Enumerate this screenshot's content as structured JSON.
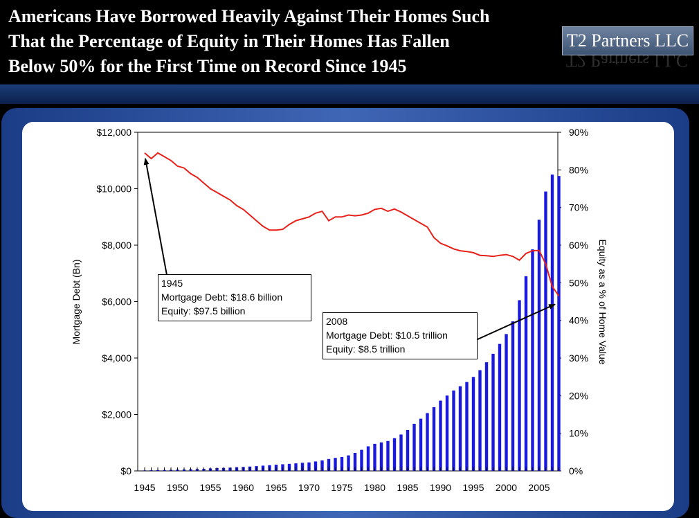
{
  "title": "Americans Have Borrowed Heavily Against Their Homes Such\nThat the Percentage of Equity in Their Homes Has Fallen\nBelow 50% for the First Time on Record Since 1945",
  "logo": "T2 Partners LLC",
  "colors": {
    "bars": "#1a1adc",
    "line": "#e8201a",
    "frame": "#2a4fa0"
  },
  "callouts": {
    "c1945": {
      "line1": "1945",
      "line2": "Mortgage Debt: $18.6 billion",
      "line3": "Equity: $97.5 billion"
    },
    "c2008": {
      "line1": "2008",
      "line2": "Mortgage Debt: $10.5 trillion",
      "line3": "Equity: $8.5 trillion"
    }
  },
  "chart_data": {
    "type": "bar+line",
    "xlabel": "",
    "ylabel_left": "Mortgage Debt (Bn)",
    "ylabel_right": "Equity as a % of Home Value",
    "ylim_left": [
      0,
      12000
    ],
    "ylim_right": [
      0,
      90
    ],
    "left_ticks": [
      "$0",
      "$2,000",
      "$4,000",
      "$6,000",
      "$8,000",
      "$10,000",
      "$12,000"
    ],
    "right_ticks": [
      "0%",
      "10%",
      "20%",
      "30%",
      "40%",
      "50%",
      "60%",
      "70%",
      "80%",
      "90%"
    ],
    "x_tick_labels": [
      "1945",
      "1950",
      "1955",
      "1960",
      "1965",
      "1970",
      "1975",
      "1980",
      "1985",
      "1990",
      "1995",
      "2000",
      "2005"
    ],
    "years": [
      1945,
      1946,
      1947,
      1948,
      1949,
      1950,
      1951,
      1952,
      1953,
      1954,
      1955,
      1956,
      1957,
      1958,
      1959,
      1960,
      1961,
      1962,
      1963,
      1964,
      1965,
      1966,
      1967,
      1968,
      1969,
      1970,
      1971,
      1972,
      1973,
      1974,
      1975,
      1976,
      1977,
      1978,
      1979,
      1980,
      1981,
      1982,
      1983,
      1984,
      1985,
      1986,
      1987,
      1988,
      1989,
      1990,
      1991,
      1992,
      1993,
      1994,
      1995,
      1996,
      1997,
      1998,
      1999,
      2000,
      2001,
      2002,
      2003,
      2004,
      2005,
      2006,
      2007,
      2008
    ],
    "series": [
      {
        "name": "Mortgage Debt (Bn)",
        "axis": "left",
        "type": "bar",
        "values": [
          18.6,
          23,
          28,
          33,
          37,
          45,
          52,
          58,
          66,
          75,
          88,
          98,
          107,
          117,
          131,
          141,
          154,
          170,
          187,
          204,
          221,
          235,
          250,
          268,
          289,
          302,
          334,
          374,
          422,
          462,
          492,
          550,
          638,
          747,
          872,
          960,
          1010,
          1060,
          1160,
          1290,
          1450,
          1670,
          1850,
          2050,
          2260,
          2490,
          2670,
          2850,
          3000,
          3150,
          3330,
          3570,
          3850,
          4150,
          4500,
          4850,
          5300,
          6050,
          6900,
          7850,
          8900,
          9900,
          10500,
          10450
        ]
      },
      {
        "name": "Equity as a % of Home Value",
        "axis": "right",
        "type": "line",
        "values": [
          84.5,
          83.0,
          84.5,
          83.5,
          82.5,
          81.0,
          80.5,
          79.0,
          78.0,
          76.5,
          75.0,
          74.0,
          73.0,
          72.0,
          70.5,
          69.5,
          68.0,
          66.5,
          65.0,
          64.0,
          64.0,
          64.2,
          65.5,
          66.5,
          67.0,
          67.5,
          68.5,
          69.0,
          66.5,
          67.5,
          67.5,
          68.0,
          67.8,
          68.0,
          68.5,
          69.5,
          69.8,
          69.0,
          69.6,
          68.8,
          67.8,
          66.8,
          65.8,
          64.8,
          62.0,
          60.5,
          59.8,
          59.0,
          58.5,
          58.3,
          58.0,
          57.3,
          57.2,
          57.0,
          57.3,
          57.5,
          57.0,
          56.0,
          57.8,
          58.5,
          58.6,
          55.0,
          49.0,
          46.5
        ]
      }
    ]
  }
}
